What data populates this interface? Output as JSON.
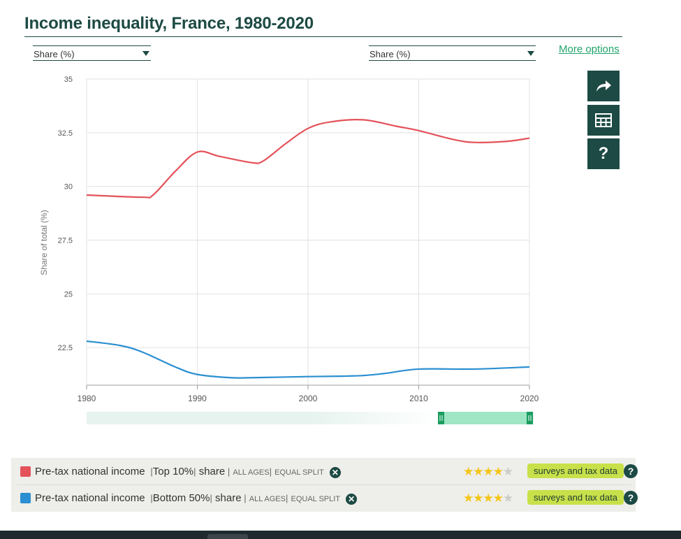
{
  "header": {
    "title": "Income inequality, France, 1980-2020",
    "dropdown_left": "Share (%)",
    "dropdown_right": "Share (%)",
    "more_options": "More options"
  },
  "toolbar": {
    "share_icon": "share-arrow-icon",
    "table_icon": "table-icon",
    "help_label": "?"
  },
  "chart_data": {
    "type": "line",
    "title": "",
    "xlabel": "",
    "ylabel": "Share of total (%)",
    "xlim": [
      1980,
      2020
    ],
    "ylim": [
      20.75,
      35
    ],
    "x_ticks": [
      "1980",
      "1990",
      "2000",
      "2010",
      "2020"
    ],
    "y_ticks": [
      "35",
      "32.5",
      "30",
      "27.5",
      "25",
      "22.5"
    ],
    "grid": true,
    "series": [
      {
        "name": "Pre-tax national income | Top 10% | share",
        "color": "#e4525a",
        "x": [
          1980,
          1985,
          1986,
          1988,
          1990,
          1992,
          1995,
          1996,
          1998,
          2000,
          2002,
          2005,
          2008,
          2010,
          2013,
          2015,
          2018,
          2020
        ],
        "y": [
          29.6,
          29.5,
          29.6,
          30.7,
          31.6,
          31.4,
          31.1,
          31.2,
          32.0,
          32.7,
          33.0,
          33.1,
          32.8,
          32.6,
          32.2,
          32.05,
          32.1,
          32.25
        ]
      },
      {
        "name": "Pre-tax national income | Bottom 50% | share",
        "color": "#2b8fd1",
        "x": [
          1980,
          1983,
          1985,
          1988,
          1990,
          1993,
          1995,
          2000,
          2003,
          2005,
          2007,
          2010,
          2015,
          2020
        ],
        "y": [
          22.8,
          22.6,
          22.3,
          21.6,
          21.25,
          21.1,
          21.1,
          21.15,
          21.17,
          21.2,
          21.3,
          21.5,
          21.5,
          21.6
        ]
      }
    ],
    "range_slider": {
      "selected_start": 1980,
      "selected_end": 2020
    }
  },
  "legend": [
    {
      "color": "#e4525a",
      "indicator": "Pre-tax national income",
      "group": "Top 10%",
      "measure": "share",
      "age": "ALL AGES",
      "unit": "EQUAL SPLIT",
      "stars": 4,
      "stars_max": 5,
      "quality": "surveys and tax data",
      "help": "?"
    },
    {
      "color": "#2b8fd1",
      "indicator": "Pre-tax national income",
      "group": "Bottom 50%",
      "measure": "share",
      "age": "ALL AGES",
      "unit": "EQUAL SPLIT",
      "stars": 4,
      "stars_max": 5,
      "quality": "surveys and tax data",
      "help": "?"
    }
  ]
}
